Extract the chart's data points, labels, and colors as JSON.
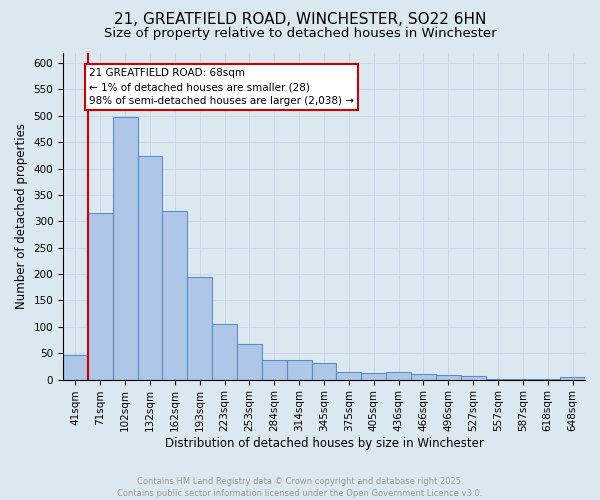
{
  "title_line1": "21, GREATFIELD ROAD, WINCHESTER, SO22 6HN",
  "title_line2": "Size of property relative to detached houses in Winchester",
  "xlabel": "Distribution of detached houses by size in Winchester",
  "ylabel": "Number of detached properties",
  "bar_labels": [
    "41sqm",
    "71sqm",
    "102sqm",
    "132sqm",
    "162sqm",
    "193sqm",
    "223sqm",
    "253sqm",
    "284sqm",
    "314sqm",
    "345sqm",
    "375sqm",
    "405sqm",
    "436sqm",
    "466sqm",
    "496sqm",
    "527sqm",
    "557sqm",
    "587sqm",
    "618sqm",
    "648sqm"
  ],
  "bar_values": [
    47,
    315,
    497,
    423,
    320,
    195,
    105,
    68,
    37,
    38,
    32,
    14,
    13,
    14,
    10,
    8,
    6,
    2,
    1,
    1,
    4
  ],
  "bar_color": "#aec6e8",
  "bar_edge_color": "#5a8fc2",
  "grid_color": "#c8d8e8",
  "background_color": "#dce8f0",
  "vline_color": "#cc0000",
  "annotation_text": "21 GREATFIELD ROAD: 68sqm\n← 1% of detached houses are smaller (28)\n98% of semi-detached houses are larger (2,038) →",
  "annotation_box_color": "#ffffff",
  "annotation_box_edge": "#cc0000",
  "ylim": [
    0,
    620
  ],
  "yticks": [
    0,
    50,
    100,
    150,
    200,
    250,
    300,
    350,
    400,
    450,
    500,
    550,
    600
  ],
  "footer_text": "Contains HM Land Registry data © Crown copyright and database right 2025.\nContains public sector information licensed under the Open Government Licence v3.0.",
  "footer_color": "#999999",
  "title_fontsize": 11,
  "subtitle_fontsize": 9.5,
  "tick_fontsize": 7.5,
  "label_fontsize": 8.5,
  "annotation_fontsize": 7.5,
  "footer_fontsize": 6.0
}
